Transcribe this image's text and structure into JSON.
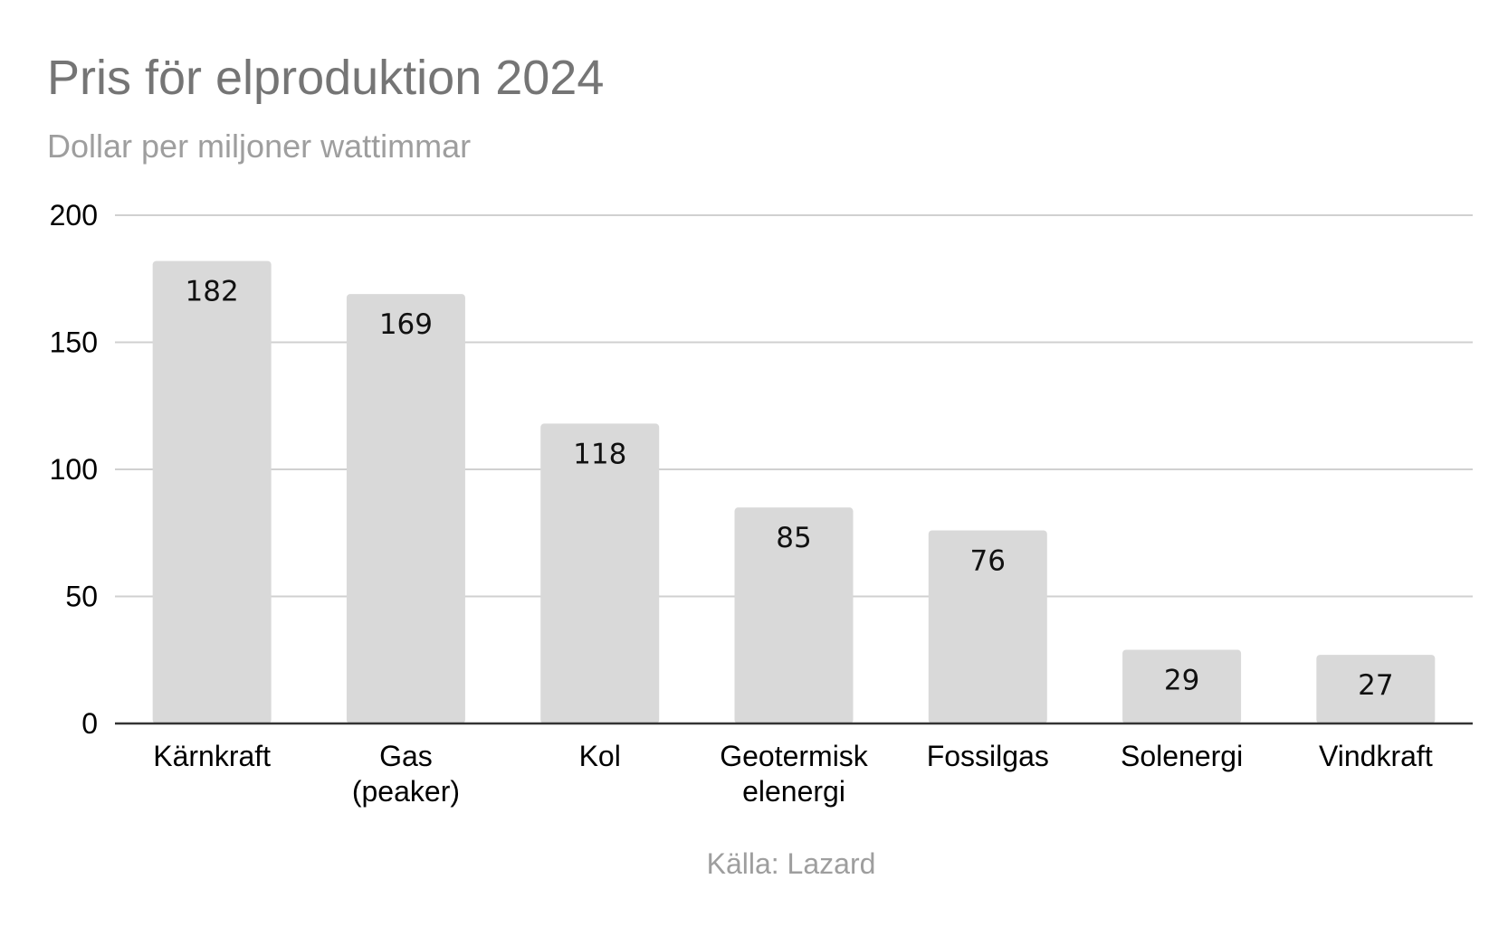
{
  "chart_data": {
    "type": "bar",
    "title": "Pris för elproduktion 2024",
    "subtitle": "Dollar per miljoner wattimmar",
    "categories": [
      [
        "Kärnkraft"
      ],
      [
        "Gas",
        "(peaker)"
      ],
      [
        "Kol"
      ],
      [
        "Geotermisk",
        "elenergi"
      ],
      [
        "Fossilgas"
      ],
      [
        "Solenergi"
      ],
      [
        "Vindkraft"
      ]
    ],
    "values": [
      182,
      169,
      118,
      85,
      76,
      29,
      27
    ],
    "ylim": [
      0,
      200
    ],
    "yticks": [
      0,
      50,
      100,
      150,
      200
    ],
    "xlabel": "",
    "ylabel": "",
    "grid": true,
    "legend": "none",
    "bar_color": "#d9d9d9",
    "source": "Källa: Lazard"
  }
}
